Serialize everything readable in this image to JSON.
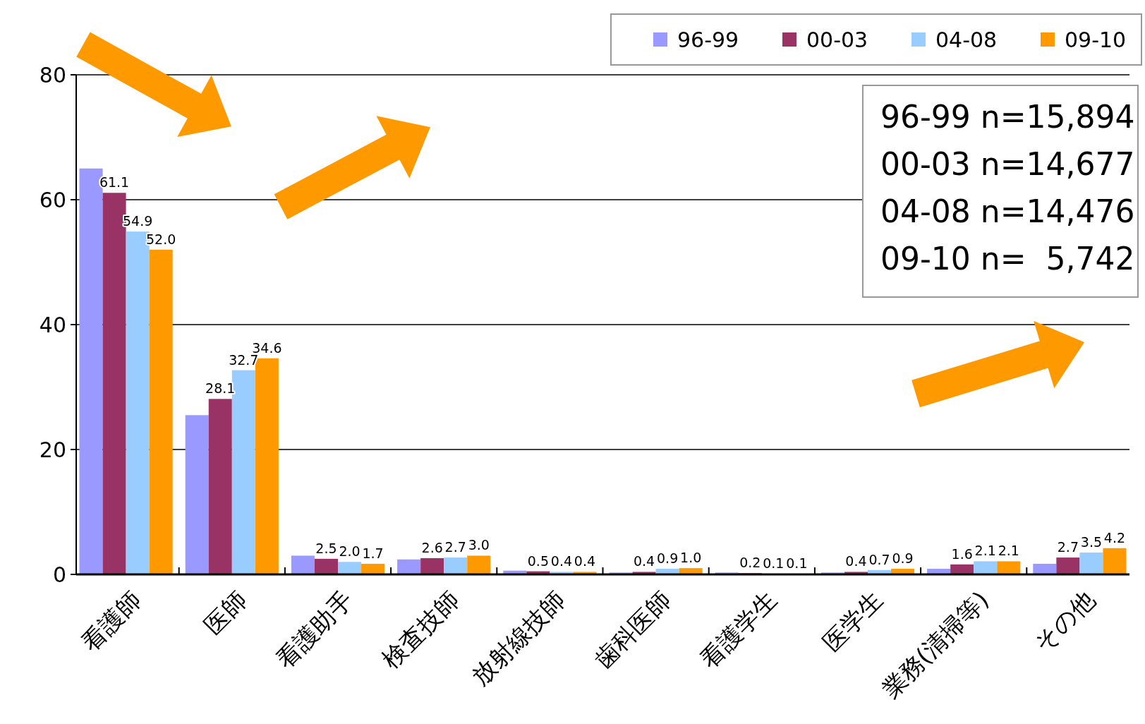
{
  "chart_data": {
    "type": "bar",
    "categories": [
      "看護師",
      "医師",
      "看護助手",
      "検査技師",
      "放射線技師",
      "歯科医師",
      "看護学生",
      "医学生",
      "業務(清掃等)",
      "その他"
    ],
    "series": [
      {
        "name": "96-99",
        "color": "#9999ff",
        "values": [
          65.0,
          25.5,
          3.0,
          2.4,
          0.6,
          0.3,
          0.3,
          0.3,
          0.9,
          1.7
        ]
      },
      {
        "name": "00-03",
        "color": "#993366",
        "values": [
          61.1,
          28.1,
          2.5,
          2.6,
          0.5,
          0.4,
          0.2,
          0.4,
          1.6,
          2.7
        ],
        "value_labels": [
          "61.1",
          "28.1",
          "2.5",
          "2.6",
          "0.5",
          "0.4",
          "0.2",
          "0.4",
          "1.6",
          "2.7"
        ]
      },
      {
        "name": "04-08",
        "color": "#99ccff",
        "values": [
          54.9,
          32.7,
          2.0,
          2.7,
          0.4,
          0.9,
          0.1,
          0.7,
          2.1,
          3.5
        ],
        "value_labels": [
          "54.9",
          "32.7",
          "2.0",
          "2.7",
          "0.4",
          "0.9",
          "0.1",
          "0.7",
          "2.1",
          "3.5"
        ]
      },
      {
        "name": "09-10",
        "color": "#ff9900",
        "values": [
          52.0,
          34.6,
          1.7,
          3.0,
          0.4,
          1.0,
          0.1,
          0.9,
          2.1,
          4.2
        ],
        "value_labels": [
          "52.0",
          "34.6",
          "1.7",
          "3.0",
          "0.4",
          "1.0",
          "0.1",
          "0.9",
          "2.1",
          "4.2"
        ]
      }
    ],
    "ylim": [
      0,
      80
    ],
    "yticks": [
      0,
      20,
      40,
      60,
      80
    ],
    "grid": "y",
    "legend": "top right",
    "annotations": [
      "96-99 n=15,894",
      "00-03 n=14,677",
      "04-08 n=14,476",
      "09-10 n=  5,742"
    ]
  }
}
